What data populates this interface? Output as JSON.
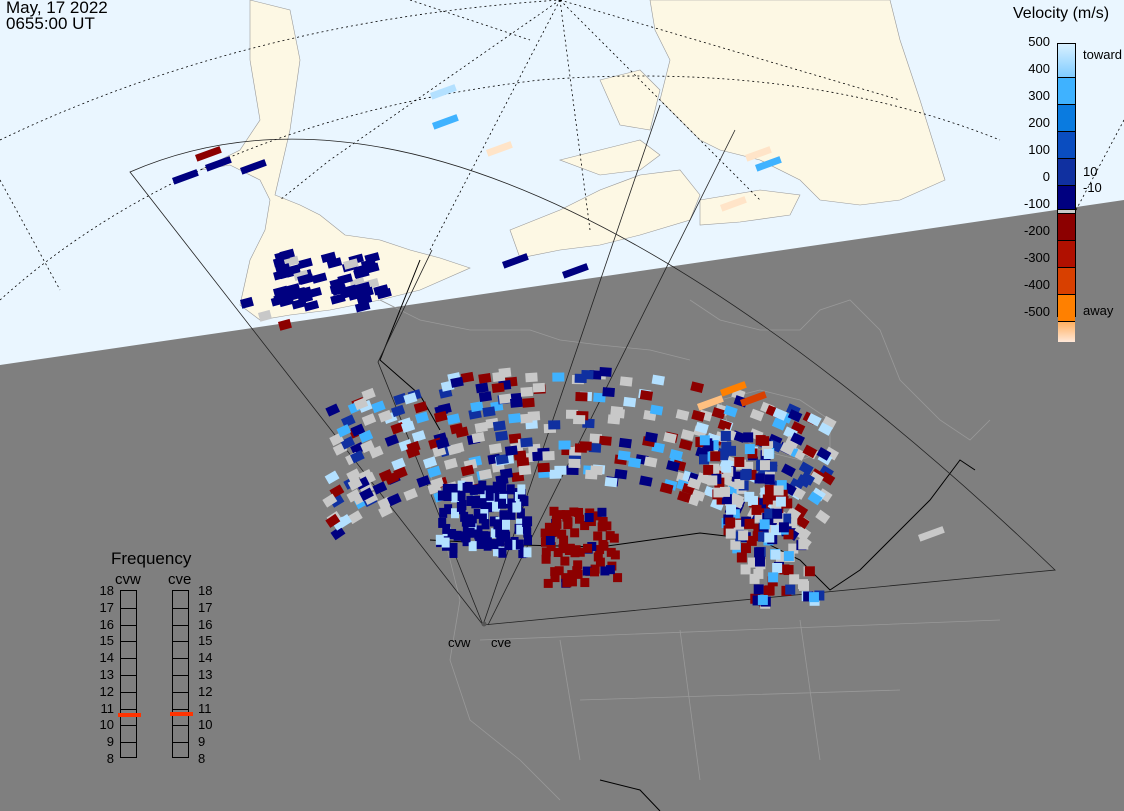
{
  "header": {
    "date": "May, 17 2022",
    "time": "0655:00 UT"
  },
  "colorbar": {
    "title": "Velocity (m/s)",
    "ticks": [
      "500",
      "400",
      "300",
      "200",
      "100",
      "0",
      "-100",
      "-200",
      "-300",
      "-400",
      "-500"
    ],
    "toward_label": "toward",
    "away_label": "away",
    "ground_scatter_upper": "10",
    "ground_scatter_lower": "-10",
    "colors": [
      "#b3e0ff",
      "#3fb2ff",
      "#0a7be0",
      "#0a4dc0",
      "#1030a0",
      "#000080",
      "#8c0000",
      "#b01000",
      "#d84000",
      "#ff8000",
      "#ffc080",
      "#ffe4c8"
    ],
    "ground_scatter_color": "#c8c8c8"
  },
  "frequency": {
    "title": "Frequency",
    "unit_range": [
      8,
      18
    ],
    "ticks": [
      "18",
      "17",
      "16",
      "15",
      "14",
      "13",
      "12",
      "11",
      "10",
      "9",
      "8"
    ],
    "radars": [
      {
        "name": "cvw",
        "frequency_mhz": 10.6
      },
      {
        "name": "cve",
        "frequency_mhz": 10.65
      }
    ],
    "indicator_color": "#ff3300"
  },
  "map": {
    "radar_labels": [
      "cvw",
      "cve"
    ],
    "day_color": "#eaf6ff",
    "land_color": "#fdf8e4",
    "night_color": "#7f7f7f"
  }
}
